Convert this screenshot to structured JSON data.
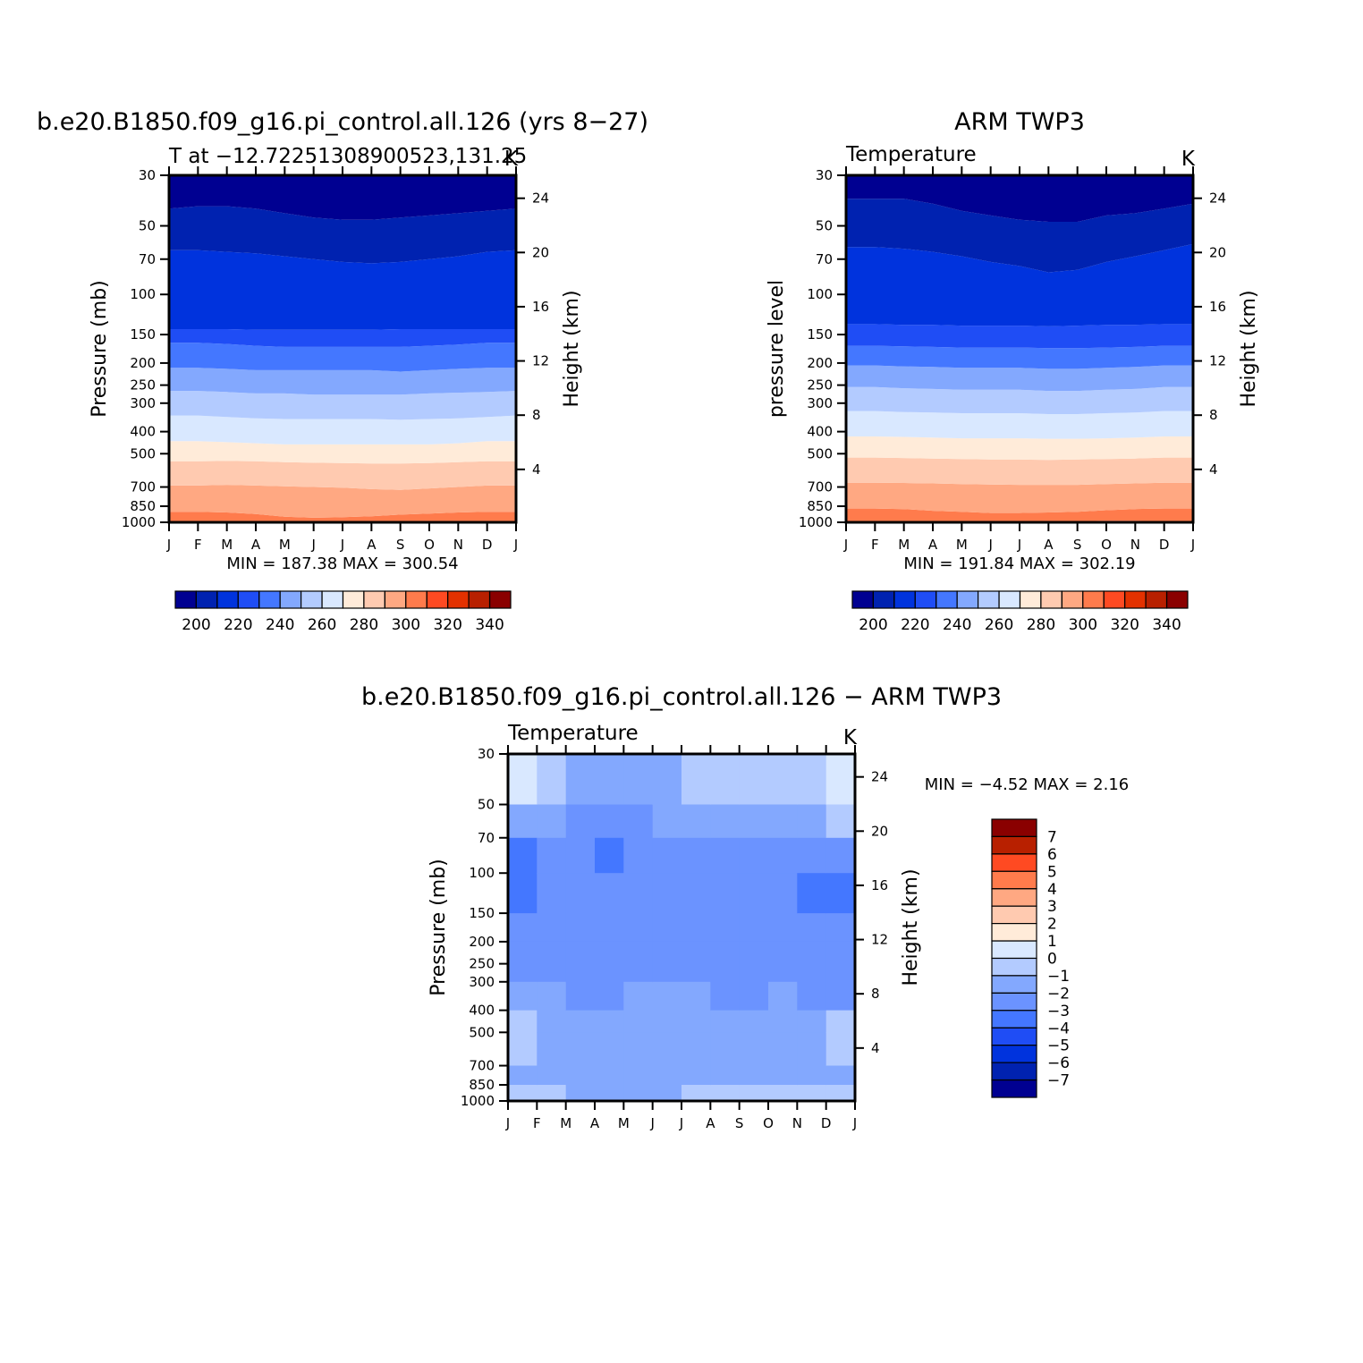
{
  "colors": {
    "abs_palette": [
      "#000091",
      "#0022b0",
      "#0033dd",
      "#1f4df5",
      "#4477ff",
      "#83a8fe",
      "#b3cbff",
      "#d9e8ff",
      "#ffebd9",
      "#ffcab0",
      "#ffa882",
      "#ff7b4c",
      "#ff4a22",
      "#e33100",
      "#b82000",
      "#8a0000"
    ],
    "diff_palette": [
      "#000091",
      "#0022b0",
      "#0033dd",
      "#1f4df5",
      "#4477ff",
      "#6b93ff",
      "#83a8fe",
      "#b3cbff",
      "#d9e8ff",
      "#ffebd9",
      "#ffcab0",
      "#ffa882",
      "#ff7b4c",
      "#ff4a22",
      "#b82000",
      "#8a0000"
    ]
  },
  "chart_data": [
    {
      "type": "heatmap",
      "title": "b.e20.B1850.f09_g16.pi_control.all.126 (yrs 8−27)",
      "subtitle_left": "T at −12.72251308900523,131.25",
      "subtitle_right": "K",
      "xlabel": "",
      "ylabel": "Pressure (mb)",
      "ylabel_right": "Height (km)",
      "x_ticks": [
        "J",
        "F",
        "M",
        "A",
        "M",
        "J",
        "J",
        "A",
        "S",
        "O",
        "N",
        "D",
        "J"
      ],
      "y_ticks": [
        "30",
        "50",
        "70",
        "100",
        "150",
        "200",
        "250",
        "300",
        "400",
        "500",
        "700",
        "850",
        "1000"
      ],
      "y_ticks_right": [
        "24",
        "20",
        "16",
        "12",
        "8",
        "4"
      ],
      "minmax_label": "MIN = 187.38 MAX = 300.54",
      "colorbar_labels": [
        "200",
        "220",
        "240",
        "260",
        "280",
        "300",
        "320",
        "340"
      ],
      "levels_bottom_to_top": [
        290,
        280,
        270,
        260,
        250,
        240,
        230,
        220,
        210,
        200,
        190
      ],
      "contour_pressure_mb": [
        [
          900,
          900,
          905,
          920,
          945,
          955,
          950,
          940,
          925,
          915,
          905,
          900,
          900
        ],
        [
          690,
          690,
          685,
          690,
          695,
          700,
          705,
          715,
          720,
          710,
          700,
          690,
          690
        ],
        [
          540,
          540,
          538,
          540,
          545,
          548,
          550,
          552,
          552,
          550,
          545,
          540,
          540
        ],
        [
          440,
          440,
          445,
          450,
          455,
          455,
          455,
          455,
          455,
          455,
          450,
          440,
          440
        ],
        [
          340,
          340,
          345,
          350,
          352,
          352,
          352,
          352,
          355,
          352,
          350,
          345,
          340
        ],
        [
          265,
          265,
          268,
          272,
          272,
          275,
          275,
          275,
          275,
          272,
          270,
          268,
          265
        ],
        [
          210,
          210,
          212,
          215,
          215,
          215,
          215,
          215,
          218,
          215,
          212,
          210,
          210
        ],
        [
          163,
          163,
          165,
          168,
          170,
          170,
          170,
          170,
          170,
          168,
          166,
          163,
          163
        ],
        [
          142,
          142,
          142,
          143,
          143,
          143,
          143,
          143,
          142,
          142,
          142,
          142,
          142
        ],
        [
          64,
          64,
          65,
          66,
          68,
          70,
          72,
          73,
          72,
          70,
          68,
          65,
          64
        ],
        [
          42,
          41,
          41,
          42,
          44,
          46,
          47,
          47,
          46,
          45,
          44,
          43,
          42
        ]
      ]
    },
    {
      "type": "heatmap",
      "title": "ARM TWP3",
      "subtitle_left": "Temperature",
      "subtitle_right": "K",
      "xlabel": "",
      "ylabel": "pressure level",
      "ylabel_right": "Height (km)",
      "x_ticks": [
        "J",
        "F",
        "M",
        "A",
        "M",
        "J",
        "J",
        "A",
        "S",
        "O",
        "N",
        "D",
        "J"
      ],
      "y_ticks": [
        "30",
        "50",
        "70",
        "100",
        "150",
        "200",
        "250",
        "300",
        "400",
        "500",
        "700",
        "850",
        "1000"
      ],
      "y_ticks_right": [
        "24",
        "20",
        "16",
        "12",
        "8",
        "4"
      ],
      "minmax_label": "MIN = 191.84 MAX = 302.19",
      "colorbar_labels": [
        "200",
        "220",
        "240",
        "260",
        "280",
        "300",
        "320",
        "340"
      ],
      "levels_bottom_to_top": [
        300,
        290,
        280,
        270,
        260,
        250,
        240,
        230,
        220,
        210,
        200,
        190
      ],
      "contour_pressure_mb": [
        [
          998,
          998,
          998,
          998,
          998,
          998,
          998,
          995,
          990,
          985,
          985,
          990,
          998
        ],
        [
          870,
          870,
          875,
          890,
          900,
          910,
          910,
          905,
          900,
          885,
          875,
          870,
          870
        ],
        [
          670,
          670,
          672,
          675,
          680,
          682,
          685,
          685,
          685,
          680,
          675,
          670,
          670
        ],
        [
          520,
          520,
          522,
          525,
          528,
          530,
          530,
          532,
          530,
          528,
          525,
          520,
          520
        ],
        [
          420,
          420,
          422,
          425,
          428,
          428,
          428,
          430,
          430,
          428,
          425,
          420,
          420
        ],
        [
          325,
          325,
          328,
          330,
          332,
          332,
          332,
          335,
          335,
          332,
          330,
          325,
          325
        ],
        [
          255,
          255,
          258,
          260,
          262,
          262,
          262,
          265,
          265,
          262,
          260,
          255,
          255
        ],
        [
          205,
          205,
          207,
          208,
          210,
          210,
          210,
          212,
          212,
          210,
          208,
          205,
          205
        ],
        [
          168,
          168,
          169,
          170,
          171,
          171,
          171,
          172,
          172,
          171,
          170,
          168,
          168
        ],
        [
          135,
          135,
          136,
          136,
          137,
          137,
          137,
          138,
          137,
          136,
          136,
          135,
          135
        ],
        [
          62,
          62,
          63,
          65,
          68,
          72,
          75,
          80,
          78,
          72,
          68,
          64,
          60
        ],
        [
          38,
          38,
          38,
          40,
          43,
          45,
          47,
          48,
          48,
          45,
          44,
          42,
          40
        ]
      ]
    },
    {
      "type": "heatmap",
      "title": "b.e20.B1850.f09_g16.pi_control.all.126 − ARM TWP3",
      "subtitle_left": "Temperature",
      "subtitle_right": "K",
      "xlabel": "",
      "ylabel": "Pressure (mb)",
      "ylabel_right": "Height (km)",
      "x_ticks": [
        "J",
        "F",
        "M",
        "A",
        "M",
        "J",
        "J",
        "A",
        "S",
        "O",
        "N",
        "D",
        "J"
      ],
      "y_ticks": [
        "30",
        "50",
        "70",
        "100",
        "150",
        "200",
        "250",
        "300",
        "400",
        "500",
        "700",
        "850",
        "1000"
      ],
      "y_ticks_right": [
        "24",
        "20",
        "16",
        "12",
        "8",
        "4"
      ],
      "minmax_label": "MIN = −4.52 MAX = 2.16",
      "colorbar_labels": [
        "7",
        "6",
        "5",
        "4",
        "3",
        "2",
        "1",
        "0",
        "−1",
        "−2",
        "−3",
        "−4",
        "−5",
        "−6",
        "−7"
      ],
      "monthly_difference_profiles": [
        {
          "month": "J",
          "pressure_mb": [
            30,
            50,
            70,
            100,
            150,
            200,
            300,
            400,
            500,
            700,
            850,
            1000
          ],
          "value": [
            0.5,
            0.2,
            -2.5,
            -3.5,
            -2.5,
            -3.0,
            -2.5,
            -1.5,
            -0.5,
            -1.5,
            -1.0,
            -0.5
          ]
        },
        {
          "month": "F",
          "pressure_mb": [
            30,
            50,
            70,
            100,
            150,
            200,
            300,
            400,
            500,
            700,
            850,
            1000
          ],
          "value": [
            0.6,
            0.2,
            -2.5,
            -3.8,
            -2.5,
            -2.5,
            -2.5,
            -1.5,
            -0.5,
            -1.5,
            -1.0,
            -0.5
          ]
        },
        {
          "month": "M",
          "pressure_mb": [
            30,
            50,
            70,
            100,
            150,
            200,
            300,
            400,
            500,
            700,
            850,
            1000
          ],
          "value": [
            -0.5,
            -1.5,
            -2.5,
            -3.0,
            -2.5,
            -2.5,
            -2.5,
            -1.5,
            -0.7,
            -1.5,
            -1.2,
            -0.5
          ]
        },
        {
          "month": "A",
          "pressure_mb": [
            30,
            50,
            70,
            100,
            150,
            200,
            300,
            400,
            500,
            700,
            850,
            1000
          ],
          "value": [
            -0.8,
            -1.5,
            -3.0,
            -3.5,
            -2.5,
            -2.5,
            -2.8,
            -1.5,
            -1.5,
            -1.5,
            -1.5,
            -1.0
          ]
        },
        {
          "month": "M",
          "pressure_mb": [
            30,
            50,
            70,
            100,
            150,
            200,
            300,
            400,
            500,
            700,
            850,
            1000
          ],
          "value": [
            -0.8,
            -1.8,
            -3.0,
            -3.2,
            -2.5,
            -2.5,
            -2.5,
            -1.5,
            -1.5,
            -1.8,
            -1.8,
            -1.0
          ]
        },
        {
          "month": "J",
          "pressure_mb": [
            30,
            50,
            70,
            100,
            150,
            200,
            300,
            400,
            500,
            700,
            850,
            1000
          ],
          "value": [
            -0.8,
            -1.5,
            -2.5,
            -2.5,
            -2.5,
            -2.5,
            -2.5,
            -1.5,
            -0.8,
            -1.5,
            -1.5,
            -1.0
          ]
        },
        {
          "month": "J",
          "pressure_mb": [
            30,
            50,
            70,
            100,
            150,
            200,
            300,
            400,
            500,
            700,
            850,
            1000
          ],
          "value": [
            -0.5,
            -1.5,
            -2.5,
            -2.6,
            -2.5,
            -2.5,
            -2.5,
            -1.5,
            -1.5,
            -1.5,
            -1.2,
            -0.5
          ]
        },
        {
          "month": "A",
          "pressure_mb": [
            30,
            50,
            70,
            100,
            150,
            200,
            300,
            400,
            500,
            700,
            850,
            1000
          ],
          "value": [
            -0.5,
            -1.5,
            -2.5,
            -3.5,
            -2.5,
            -2.5,
            -2.5,
            -1.5,
            -1.5,
            -1.5,
            -0.8,
            0.2
          ]
        },
        {
          "month": "S",
          "pressure_mb": [
            30,
            50,
            70,
            100,
            150,
            200,
            300,
            400,
            500,
            700,
            850,
            1000
          ],
          "value": [
            -0.3,
            -1.0,
            -2.0,
            -3.5,
            -2.5,
            -2.5,
            -2.5,
            -1.8,
            -1.5,
            -1.5,
            -0.8,
            0.3
          ]
        },
        {
          "month": "O",
          "pressure_mb": [
            30,
            50,
            70,
            100,
            150,
            200,
            300,
            400,
            500,
            700,
            850,
            1000
          ],
          "value": [
            0.2,
            -0.5,
            -2.0,
            -3.5,
            -2.5,
            -2.5,
            -2.5,
            -1.5,
            -1.5,
            -1.5,
            -1.2,
            0.2
          ]
        },
        {
          "month": "N",
          "pressure_mb": [
            30,
            50,
            70,
            100,
            150,
            200,
            300,
            400,
            500,
            700,
            850,
            1000
          ],
          "value": [
            -0.5,
            -0.8,
            -2.5,
            -3.5,
            -2.5,
            -2.5,
            -2.5,
            -1.5,
            -0.8,
            -1.5,
            -1.5,
            -0.5
          ]
        },
        {
          "month": "D",
          "pressure_mb": [
            30,
            50,
            70,
            100,
            150,
            200,
            300,
            400,
            500,
            700,
            850,
            1000
          ],
          "value": [
            0.3,
            0.2,
            -1.5,
            -3.8,
            -2.5,
            -3.2,
            -3.0,
            -1.5,
            -0.5,
            -1.5,
            -1.0,
            -0.5
          ]
        },
        {
          "month": "J",
          "pressure_mb": [
            30,
            50,
            70,
            100,
            150,
            200,
            300,
            400,
            500,
            700,
            850,
            1000
          ],
          "value": [
            0.5,
            0.2,
            -2.5,
            -3.5,
            -2.5,
            -3.0,
            -2.5,
            -1.5,
            -0.5,
            -1.5,
            -1.0,
            -0.5
          ]
        }
      ]
    }
  ]
}
